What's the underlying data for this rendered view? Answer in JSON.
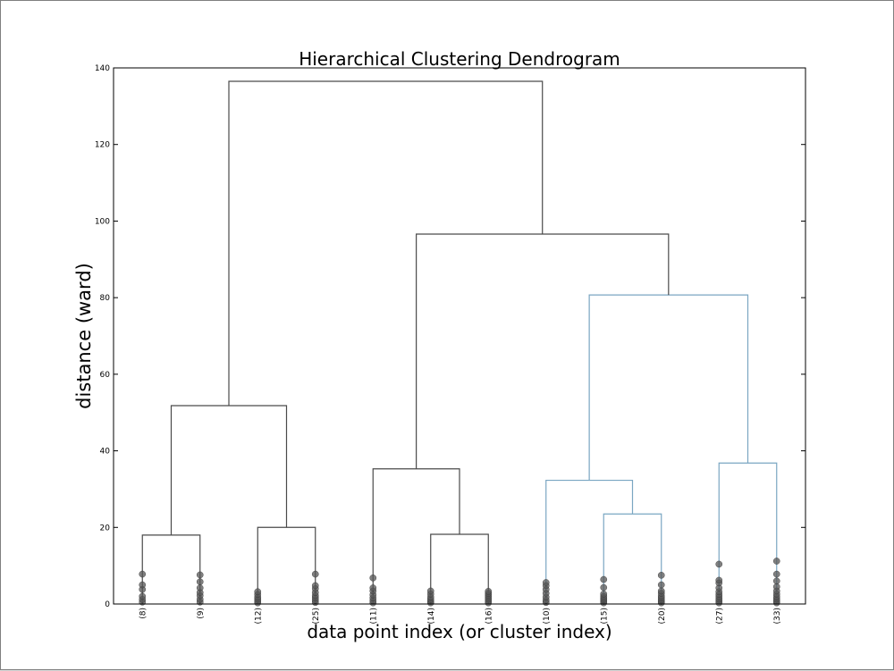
{
  "chart_data": {
    "type": "dendrogram",
    "title": "Hierarchical Clustering Dendrogram",
    "xlabel": "data point index (or cluster index)",
    "ylabel": "distance (ward)",
    "ylim": [
      0,
      140
    ],
    "yticks": [
      0,
      20,
      40,
      60,
      80,
      100,
      120,
      140
    ],
    "leaves": [
      "(8)",
      "(9)",
      "(12)",
      "(25)",
      "(11)",
      "(14)",
      "(16)",
      "(10)",
      "(15)",
      "(20)",
      "(27)",
      "(33)"
    ],
    "colors": {
      "above_threshold": "#4a4a4a",
      "cluster_blue": "#7aa6c2",
      "points": "#555555"
    },
    "links": [
      {
        "left": 0,
        "right": 1,
        "height": 18,
        "color": "above_threshold"
      },
      {
        "left": 2,
        "right": 3,
        "height": 20,
        "color": "above_threshold"
      },
      {
        "left": 5,
        "right": 6,
        "height": 18.2,
        "color": "above_threshold"
      },
      {
        "left": 8,
        "right": 9,
        "height": 23.5,
        "color": "cluster_blue"
      },
      {
        "left": 7,
        "right": "n3",
        "height": 32.3,
        "color": "cluster_blue"
      },
      {
        "left": 10,
        "right": 11,
        "height": 36.8,
        "color": "cluster_blue"
      },
      {
        "left": 4,
        "right": "n2",
        "height": 35.3,
        "color": "above_threshold"
      },
      {
        "left": "n0",
        "right": "n1",
        "height": 51.8,
        "color": "above_threshold"
      },
      {
        "left": "n4",
        "right": "n5",
        "height": 80.7,
        "color": "cluster_blue"
      },
      {
        "left": "n6",
        "right": "n8",
        "height": 96.6,
        "color": "above_threshold"
      },
      {
        "left": "n7",
        "right": "n9",
        "height": 136.5,
        "color": "above_threshold"
      }
    ],
    "leaf_points": [
      [
        0.5,
        1.2,
        2.0,
        3.8,
        5.0,
        7.8
      ],
      [
        0.5,
        1.2,
        2.2,
        3.0,
        4.2,
        5.8,
        7.6
      ],
      [
        0.3,
        0.8,
        1.3,
        1.8,
        2.5,
        3.2
      ],
      [
        0.4,
        1.0,
        1.6,
        2.2,
        3.0,
        4.0,
        4.8,
        7.8
      ],
      [
        0.3,
        0.9,
        1.6,
        2.4,
        3.4,
        4.2,
        6.8
      ],
      [
        0.3,
        0.7,
        1.2,
        1.8,
        2.6,
        3.4
      ],
      [
        0.3,
        0.8,
        1.3,
        1.8,
        2.3,
        2.8,
        3.3
      ],
      [
        0.4,
        1.0,
        1.8,
        2.8,
        3.8,
        4.8,
        5.6
      ],
      [
        0.3,
        0.7,
        1.1,
        1.5,
        2.0,
        2.6,
        4.3,
        6.4
      ],
      [
        0.3,
        0.7,
        1.1,
        1.6,
        2.1,
        2.8,
        3.4,
        5.0,
        7.5
      ],
      [
        0.3,
        0.8,
        1.3,
        1.9,
        2.5,
        3.2,
        4.2,
        5.5,
        6.2,
        10.4
      ],
      [
        0.3,
        0.8,
        1.3,
        1.9,
        2.6,
        3.4,
        4.5,
        6.0,
        7.8,
        11.2
      ]
    ]
  }
}
